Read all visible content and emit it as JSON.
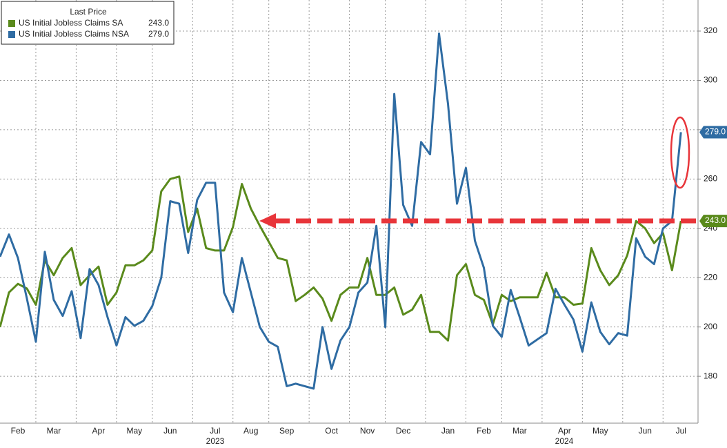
{
  "chart_data": {
    "type": "line",
    "legend_title": "Last Price",
    "categories": [
      null,
      null,
      "Feb",
      null,
      null,
      null,
      "Mar",
      null,
      null,
      null,
      null,
      "Apr",
      null,
      null,
      null,
      "May",
      null,
      null,
      null,
      "Jun",
      null,
      null,
      null,
      null,
      "Jul",
      null,
      null,
      null,
      "Aug",
      null,
      null,
      null,
      "Sep",
      null,
      null,
      null,
      null,
      "Oct",
      null,
      null,
      null,
      "Nov",
      null,
      null,
      null,
      "Dec",
      null,
      null,
      null,
      null,
      "Jan",
      null,
      null,
      null,
      "Feb",
      null,
      null,
      null,
      "Mar",
      null,
      null,
      null,
      null,
      "Apr",
      null,
      null,
      null,
      "May",
      null,
      null,
      null,
      null,
      "Jun",
      null,
      null,
      null,
      "Jul"
    ],
    "years": [
      "2023",
      "2024"
    ],
    "series": [
      {
        "name": "US Initial Jobless Claims SA",
        "color": "#5a8a1c",
        "last_value_label": "243.0",
        "values": [
          200,
          214,
          217.5,
          215.6,
          209,
          227,
          221,
          228,
          232,
          217,
          221,
          224.5,
          209,
          214,
          225,
          225,
          227,
          231,
          255,
          260,
          261,
          238.5,
          248,
          232,
          231,
          231,
          240.5,
          258,
          248,
          241,
          234.5,
          228,
          227,
          210.5,
          213,
          216,
          211.5,
          202.5,
          213,
          216,
          216,
          228,
          213,
          213,
          216,
          205,
          207,
          213,
          198,
          198,
          194.5,
          221,
          225.5,
          213,
          211,
          201,
          213,
          210.5,
          212,
          212,
          212,
          222,
          212,
          212,
          209,
          209.5,
          232,
          223,
          217,
          221,
          229,
          243,
          240,
          234,
          238,
          223,
          243
        ]
      },
      {
        "name": "US Initial Jobless Claims NSA",
        "color": "#2f6ca3",
        "last_value_label": "279.0",
        "values": [
          228.5,
          237.5,
          228,
          211.5,
          194,
          230.5,
          211,
          204.5,
          214.5,
          195.5,
          223.5,
          217,
          204,
          192.5,
          204,
          200.5,
          202.5,
          208.5,
          220,
          251,
          250,
          230,
          251.5,
          258.5,
          258.5,
          214,
          206,
          228,
          214,
          200,
          194,
          192,
          176,
          177,
          176,
          175,
          200,
          183,
          194.5,
          200,
          214,
          218,
          241,
          200,
          294.5,
          249.5,
          241,
          275,
          270,
          319,
          290.5,
          250,
          264.5,
          235,
          224,
          200.5,
          196,
          215,
          204,
          192.5,
          195,
          197.5,
          215.5,
          209,
          203,
          190,
          210,
          198,
          193,
          197.5,
          196.5,
          236,
          228.5,
          225.5,
          240,
          243,
          279
        ]
      }
    ],
    "ylim": [
      161,
      332.6
    ],
    "yticks": [
      180,
      200,
      220,
      240,
      260,
      280,
      300,
      320
    ],
    "y_axis_side": "right",
    "grid": true
  }
}
